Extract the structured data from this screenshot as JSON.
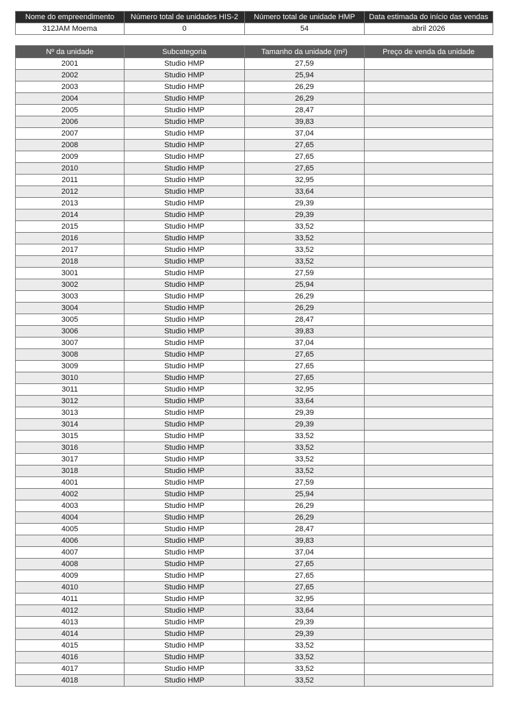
{
  "summary": {
    "headers": [
      "Nome do empreendimento",
      "Número total de unidades HIS-2",
      "Número total de unidade HMP",
      "Data estimada do início das vendas"
    ],
    "values": [
      "312JAM Moema",
      "0",
      "54",
      "abril 2026"
    ]
  },
  "units": {
    "headers": [
      "Nº da unidade",
      "Subcategoria",
      "Tamanho da unidade (m²)",
      "Preço de venda da unidade"
    ],
    "rows": [
      [
        "2001",
        "Studio HMP",
        "27,59",
        ""
      ],
      [
        "2002",
        "Studio HMP",
        "25,94",
        ""
      ],
      [
        "2003",
        "Studio HMP",
        "26,29",
        ""
      ],
      [
        "2004",
        "Studio HMP",
        "26,29",
        ""
      ],
      [
        "2005",
        "Studio HMP",
        "28,47",
        ""
      ],
      [
        "2006",
        "Studio HMP",
        "39,83",
        ""
      ],
      [
        "2007",
        "Studio HMP",
        "37,04",
        ""
      ],
      [
        "2008",
        "Studio HMP",
        "27,65",
        ""
      ],
      [
        "2009",
        "Studio HMP",
        "27,65",
        ""
      ],
      [
        "2010",
        "Studio HMP",
        "27,65",
        ""
      ],
      [
        "2011",
        "Studio HMP",
        "32,95",
        ""
      ],
      [
        "2012",
        "Studio HMP",
        "33,64",
        ""
      ],
      [
        "2013",
        "Studio HMP",
        "29,39",
        ""
      ],
      [
        "2014",
        "Studio HMP",
        "29,39",
        ""
      ],
      [
        "2015",
        "Studio HMP",
        "33,52",
        ""
      ],
      [
        "2016",
        "Studio HMP",
        "33,52",
        ""
      ],
      [
        "2017",
        "Studio HMP",
        "33,52",
        ""
      ],
      [
        "2018",
        "Studio HMP",
        "33,52",
        ""
      ],
      [
        "3001",
        "Studio HMP",
        "27,59",
        ""
      ],
      [
        "3002",
        "Studio HMP",
        "25,94",
        ""
      ],
      [
        "3003",
        "Studio HMP",
        "26,29",
        ""
      ],
      [
        "3004",
        "Studio HMP",
        "26,29",
        ""
      ],
      [
        "3005",
        "Studio HMP",
        "28,47",
        ""
      ],
      [
        "3006",
        "Studio HMP",
        "39,83",
        ""
      ],
      [
        "3007",
        "Studio HMP",
        "37,04",
        ""
      ],
      [
        "3008",
        "Studio HMP",
        "27,65",
        ""
      ],
      [
        "3009",
        "Studio HMP",
        "27,65",
        ""
      ],
      [
        "3010",
        "Studio HMP",
        "27,65",
        ""
      ],
      [
        "3011",
        "Studio HMP",
        "32,95",
        ""
      ],
      [
        "3012",
        "Studio HMP",
        "33,64",
        ""
      ],
      [
        "3013",
        "Studio HMP",
        "29,39",
        ""
      ],
      [
        "3014",
        "Studio HMP",
        "29,39",
        ""
      ],
      [
        "3015",
        "Studio HMP",
        "33,52",
        ""
      ],
      [
        "3016",
        "Studio HMP",
        "33,52",
        ""
      ],
      [
        "3017",
        "Studio HMP",
        "33,52",
        ""
      ],
      [
        "3018",
        "Studio HMP",
        "33,52",
        ""
      ],
      [
        "4001",
        "Studio HMP",
        "27,59",
        ""
      ],
      [
        "4002",
        "Studio HMP",
        "25,94",
        ""
      ],
      [
        "4003",
        "Studio HMP",
        "26,29",
        ""
      ],
      [
        "4004",
        "Studio HMP",
        "26,29",
        ""
      ],
      [
        "4005",
        "Studio HMP",
        "28,47",
        ""
      ],
      [
        "4006",
        "Studio HMP",
        "39,83",
        ""
      ],
      [
        "4007",
        "Studio HMP",
        "37,04",
        ""
      ],
      [
        "4008",
        "Studio HMP",
        "27,65",
        ""
      ],
      [
        "4009",
        "Studio HMP",
        "27,65",
        ""
      ],
      [
        "4010",
        "Studio HMP",
        "27,65",
        ""
      ],
      [
        "4011",
        "Studio HMP",
        "32,95",
        ""
      ],
      [
        "4012",
        "Studio HMP",
        "33,64",
        ""
      ],
      [
        "4013",
        "Studio HMP",
        "29,39",
        ""
      ],
      [
        "4014",
        "Studio HMP",
        "29,39",
        ""
      ],
      [
        "4015",
        "Studio HMP",
        "33,52",
        ""
      ],
      [
        "4016",
        "Studio HMP",
        "33,52",
        ""
      ],
      [
        "4017",
        "Studio HMP",
        "33,52",
        ""
      ],
      [
        "4018",
        "Studio HMP",
        "33,52",
        ""
      ]
    ]
  }
}
